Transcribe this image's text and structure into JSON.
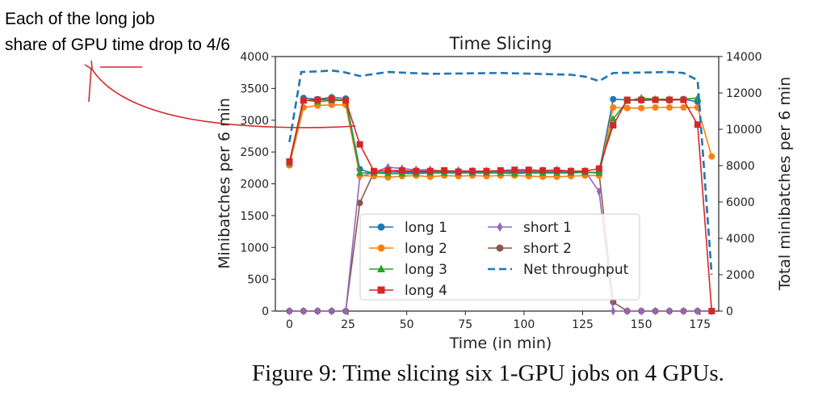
{
  "annotation": {
    "line1": "Each of the long job",
    "line2": "share of GPU time drop to 4/6",
    "arrow_color": "#d42a2a"
  },
  "caption": "Figure 9: Time slicing six 1-GPU jobs on 4 GPUs.",
  "chart_data": {
    "type": "line",
    "title": "Time Slicing",
    "xlabel": "Time (in min)",
    "ylabel": "Minibatches per 6 min",
    "y2label": "Total minibatches per 6 min",
    "xlim": [
      -6,
      183
    ],
    "ylim": [
      0,
      4000
    ],
    "y2lim": [
      0,
      14000
    ],
    "xticks": [
      0,
      25,
      50,
      75,
      100,
      125,
      150,
      175
    ],
    "yticks": [
      0,
      500,
      1000,
      1500,
      2000,
      2500,
      3000,
      3500,
      4000
    ],
    "y2ticks": [
      0,
      2000,
      4000,
      6000,
      8000,
      10000,
      12000,
      14000
    ],
    "grid": false,
    "legend_position": "lower-center",
    "legend_order": [
      "long 1",
      "long 2",
      "long 3",
      "long 4",
      "short 1",
      "short 2",
      "Net throughput"
    ],
    "x": [
      0,
      6,
      12,
      18,
      24,
      30,
      36,
      42,
      48,
      54,
      60,
      66,
      72,
      78,
      84,
      90,
      96,
      102,
      108,
      114,
      120,
      126,
      132,
      138,
      144,
      150,
      156,
      162,
      168,
      174,
      180
    ],
    "series": [
      {
        "name": "long 1",
        "color": "#1f77b4",
        "marker": "circle",
        "axis": "left",
        "values": [
          2330,
          3350,
          3330,
          3360,
          3340,
          2230,
          2160,
          2190,
          2180,
          2180,
          2170,
          2180,
          2170,
          2180,
          2180,
          2180,
          2180,
          2180,
          2180,
          2190,
          2180,
          2180,
          2180,
          3330,
          3320,
          3310,
          3320,
          3310,
          3330,
          3290,
          null
        ]
      },
      {
        "name": "long 2",
        "color": "#ff7f0e",
        "marker": "circle",
        "axis": "left",
        "values": [
          2290,
          3200,
          3230,
          3240,
          3240,
          2130,
          2120,
          2100,
          2120,
          2130,
          2110,
          2130,
          2120,
          2130,
          2120,
          2130,
          2130,
          2120,
          2110,
          2110,
          2120,
          2130,
          2130,
          3200,
          3190,
          3190,
          3200,
          3200,
          3200,
          3200,
          2430
        ]
      },
      {
        "name": "long 3",
        "color": "#2ca02c",
        "marker": "triangle",
        "axis": "left",
        "values": [
          2320,
          3320,
          3290,
          3310,
          3310,
          2170,
          2170,
          2160,
          2160,
          2160,
          2170,
          2170,
          2170,
          2170,
          2170,
          2170,
          2160,
          2170,
          2170,
          2170,
          2170,
          2180,
          2170,
          3020,
          3300,
          3350,
          3330,
          3330,
          3330,
          3350,
          null
        ]
      },
      {
        "name": "long 4",
        "color": "#d62728",
        "marker": "square",
        "axis": "left",
        "values": [
          2350,
          3310,
          3320,
          3330,
          3310,
          2620,
          2200,
          2210,
          2210,
          2200,
          2200,
          2210,
          2190,
          2200,
          2200,
          2210,
          2220,
          2220,
          2210,
          2210,
          2200,
          2200,
          2240,
          2920,
          3320,
          3320,
          3320,
          3320,
          3320,
          2930,
          0
        ]
      },
      {
        "name": "short 1",
        "color": "#9467bd",
        "marker": "diamond",
        "axis": "left",
        "values": [
          0,
          0,
          0,
          0,
          0,
          2110,
          2180,
          2260,
          2240,
          2220,
          2220,
          2200,
          2210,
          2200,
          2200,
          2200,
          2200,
          2210,
          2210,
          2220,
          2200,
          2200,
          1880,
          0,
          0,
          0,
          0,
          0,
          0,
          0,
          0
        ]
      },
      {
        "name": "short 2",
        "color": "#8c564b",
        "marker": "circle",
        "axis": "left",
        "values": [
          0,
          0,
          0,
          0,
          0,
          1700,
          2180,
          2180,
          2200,
          2190,
          2180,
          2190,
          2190,
          2180,
          2190,
          2190,
          2190,
          2190,
          2190,
          2180,
          2180,
          2180,
          2170,
          140,
          0,
          0,
          0,
          0,
          0,
          0,
          0
        ]
      },
      {
        "name": "Net throughput",
        "color": "#1f77b4",
        "dashed": true,
        "axis": "right",
        "points": [
          [
            0,
            9300
          ],
          [
            5,
            13150
          ],
          [
            12,
            13180
          ],
          [
            18,
            13230
          ],
          [
            23,
            13150
          ],
          [
            30,
            12930
          ],
          [
            42,
            13150
          ],
          [
            60,
            13050
          ],
          [
            90,
            13100
          ],
          [
            120,
            13000
          ],
          [
            126,
            12900
          ],
          [
            132,
            12650
          ],
          [
            138,
            13100
          ],
          [
            150,
            13120
          ],
          [
            162,
            13150
          ],
          [
            168,
            13100
          ],
          [
            174,
            12700
          ],
          [
            180,
            2000
          ]
        ]
      }
    ]
  }
}
